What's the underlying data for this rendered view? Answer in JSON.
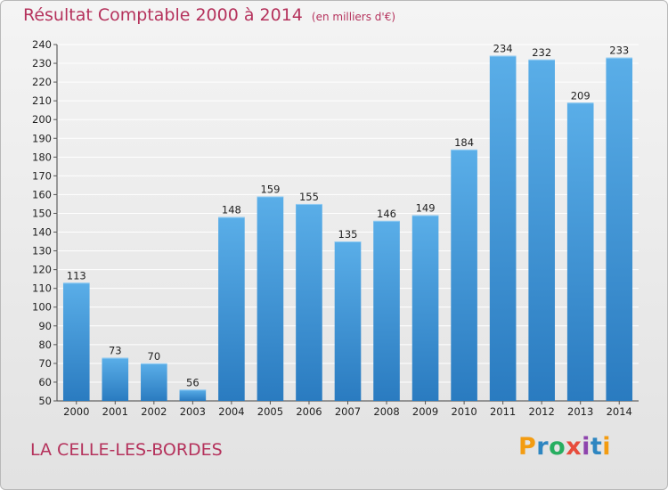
{
  "header": {
    "title": "Résultat Comptable 2000 à 2014",
    "subtitle": "(en milliers d'€)"
  },
  "footer": {
    "place": "LA CELLE-LES-BORDES",
    "logo": {
      "letters": [
        "P",
        "r",
        "o",
        "x",
        "i",
        "t",
        "i"
      ],
      "colors": [
        "#f39c12",
        "#2e86c1",
        "#27ae60",
        "#e74c3c",
        "#8e44ad",
        "#2e86c1",
        "#f39c12"
      ]
    }
  },
  "chart_data": {
    "type": "bar",
    "title": "Résultat Comptable 2000 à 2014",
    "subtitle": "(en milliers d'€)",
    "categories": [
      "2000",
      "2001",
      "2002",
      "2003",
      "2004",
      "2005",
      "2006",
      "2007",
      "2008",
      "2009",
      "2010",
      "2011",
      "2012",
      "2013",
      "2014"
    ],
    "values": [
      113,
      73,
      70,
      56,
      148,
      159,
      155,
      135,
      146,
      149,
      184,
      234,
      232,
      209,
      233
    ],
    "ylim": [
      50,
      240
    ],
    "yticks": [
      50,
      60,
      70,
      80,
      90,
      100,
      110,
      120,
      130,
      140,
      150,
      160,
      170,
      180,
      190,
      200,
      210,
      220,
      230,
      240
    ],
    "grid": true,
    "bar_color_top": "#5aaee8",
    "bar_color_bottom": "#2a7bc0",
    "gridline_color": "#ffffff"
  }
}
